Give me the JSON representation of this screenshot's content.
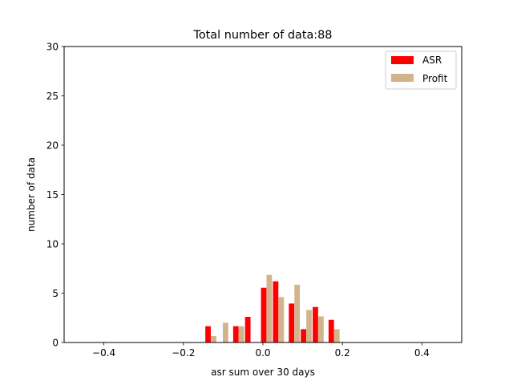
{
  "chart_data": {
    "type": "bar",
    "title": "Total number of data:88",
    "xlabel": "asr sum over 30 days",
    "ylabel": "number of data",
    "xlim": [
      -0.5,
      0.5
    ],
    "ylim": [
      0,
      30
    ],
    "xticks": [
      -0.4,
      -0.2,
      0.0,
      0.2,
      0.4
    ],
    "xtick_labels": [
      "−0.4",
      "−0.2",
      "0.0",
      "0.2",
      "0.4"
    ],
    "yticks": [
      0,
      5,
      10,
      15,
      20,
      25,
      30
    ],
    "ytick_labels": [
      "0",
      "5",
      "10",
      "15",
      "20",
      "25",
      "30"
    ],
    "grid": false,
    "legend_position": "upper right",
    "bar_width": 0.0137,
    "series": [
      {
        "name": "ASR",
        "color": "#ff0000",
        "x": [
          -0.138,
          -0.068,
          -0.038,
          0.002,
          0.032,
          0.072,
          0.102,
          0.132,
          0.172
        ],
        "values": [
          1.65,
          1.65,
          2.6,
          5.55,
          6.2,
          3.95,
          1.35,
          3.6,
          2.3
        ]
      },
      {
        "name": "Profit",
        "color": "#d2b48c",
        "x": [
          -0.124,
          -0.094,
          -0.054,
          0.016,
          0.046,
          0.086,
          0.116,
          0.146,
          0.186
        ],
        "values": [
          0.65,
          2.0,
          1.65,
          6.85,
          4.6,
          5.85,
          3.3,
          2.65,
          1.35
        ]
      }
    ]
  }
}
